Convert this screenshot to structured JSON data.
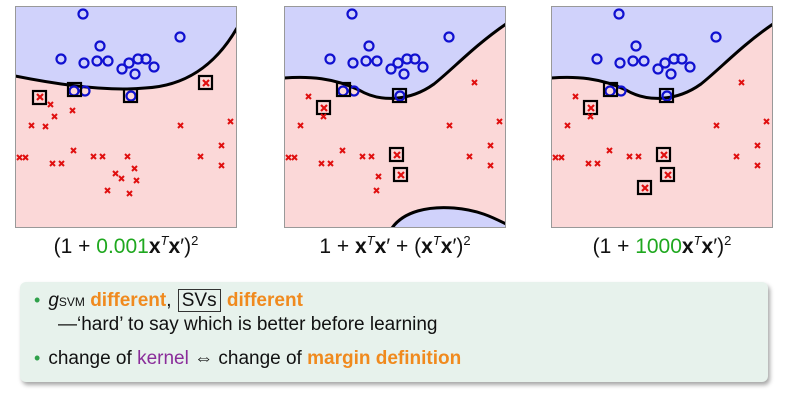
{
  "panels": [
    {
      "caption": {
        "pre": "(1 + ",
        "coef": "0.001",
        "post": ")"
      },
      "caption_coef_color": "#1fa81f"
    },
    {
      "caption": {
        "pre": "1 + ",
        "coef": "",
        "post": " + ("
      }
    },
    {
      "caption": {
        "pre": "(1 + ",
        "coef": "1000",
        "post": ")"
      },
      "caption_coef_color": "#1fa81f"
    }
  ],
  "captions_text": {
    "p1": "(1 + 0.001x^T x')^2",
    "p2": "1 + x^T x' + (x^T x')^2",
    "p3": "(1 + 1000x^T x')^2"
  },
  "bullets": {
    "b1": {
      "g": "g",
      "g_sub": "SVM",
      "w1": "different",
      ",": ",",
      "svs": "SVs",
      "w2": "different"
    },
    "b1_line2": "—‘hard’ to say which is better before learning",
    "b2": {
      "t1": "change of ",
      "kernel": "kernel",
      "iff": "⇔",
      "t2": "change of ",
      "margin": "margin definition"
    }
  },
  "colors": {
    "blue_region": "#d0d2fb",
    "red_region": "#fbd8d8",
    "circle": "#1010d0",
    "cross": "#e01010",
    "accent_orange": "#f08a1e",
    "kernel_purple": "#8a2d9a",
    "coef_green": "#1fa81f",
    "box_bg": "#e7f2ec"
  }
}
